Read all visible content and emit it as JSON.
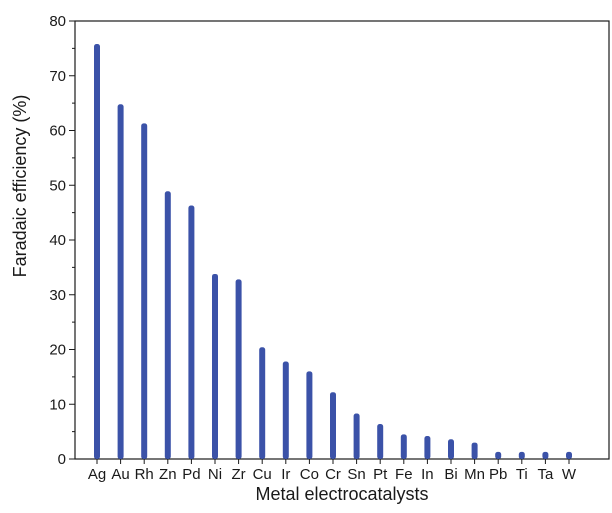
{
  "chart_data": {
    "type": "bar",
    "title": "",
    "xlabel": "Metal electrocatalysts",
    "ylabel": "Faradaic efficiency (%)",
    "ylim": [
      0,
      80
    ],
    "yticks": [
      0,
      10,
      20,
      30,
      40,
      50,
      60,
      70,
      80
    ],
    "categories": [
      "Ag",
      "Au",
      "Rh",
      "Zn",
      "Pd",
      "Ni",
      "Zr",
      "Cu",
      "Ir",
      "Co",
      "Cr",
      "Sn",
      "Pt",
      "Fe",
      "In",
      "Bi",
      "Mn",
      "Pb",
      "Ti",
      "Ta",
      "W"
    ],
    "values": [
      75.8,
      64.8,
      61.3,
      48.9,
      46.3,
      33.8,
      32.8,
      20.4,
      17.8,
      16.0,
      12.2,
      8.3,
      6.4,
      4.5,
      4.2,
      3.6,
      3.0,
      1.3,
      1.3,
      1.3,
      1.3
    ],
    "bar_color": "#3b52a8",
    "axis_color": "#1a1a1a",
    "grid": false,
    "legend": "none"
  }
}
